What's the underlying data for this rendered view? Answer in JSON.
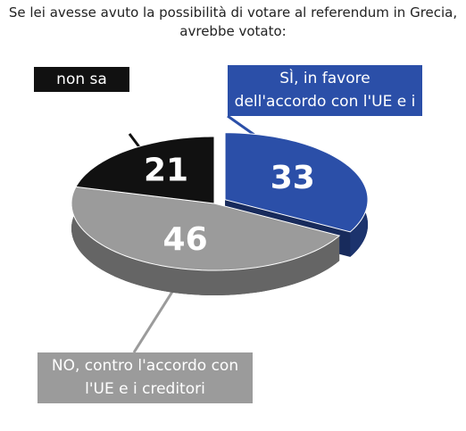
{
  "chart_data": {
    "type": "pie",
    "title": "Se lei avesse avuto la possibilità di votare al referendum in Grecia, avrebbe votato:",
    "categories": [
      "SÌ, in favore dell'accordo con l'UE e i creditori",
      "NO, contro l'accordo con l'UE e i creditori",
      "non sa"
    ],
    "values": [
      33,
      46,
      21
    ],
    "colors": [
      "#2b4fa8",
      "#9b9b9b",
      "#111111"
    ]
  }
}
